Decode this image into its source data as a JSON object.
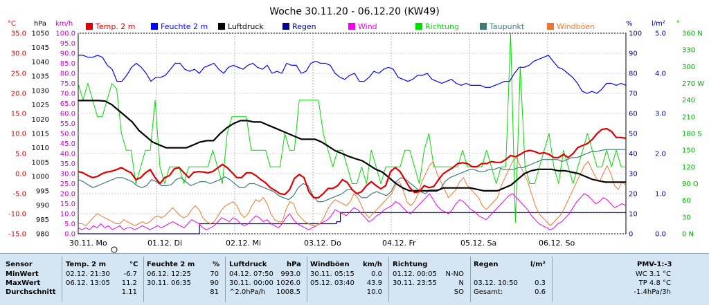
{
  "chart_data": {
    "type": "line",
    "title": "Woche 30.11.20 - 06.12.20 (KW49)",
    "axes": {
      "temp": {
        "unit": "°C",
        "min": -15,
        "max": 35,
        "ticks": [
          "35.0",
          "30.0",
          "25.0",
          "20.0",
          "15.0",
          "10.0",
          "5.0",
          "0.0",
          "-5.0",
          "-10.0",
          "-15.0"
        ],
        "color": "#dd0000"
      },
      "pressure": {
        "unit": "hPa",
        "min": 980,
        "max": 1050,
        "ticks": [
          "1050",
          "1045",
          "1040",
          "1035",
          "1030",
          "1025",
          "1020",
          "1015",
          "1010",
          "1005",
          "1000",
          "995",
          "990",
          "985",
          "980"
        ],
        "color": "#000000"
      },
      "wind": {
        "unit": "km/h",
        "min": 0,
        "max": 100,
        "ticks": [
          "100.0",
          "95.0",
          "90.0",
          "85.0",
          "80.0",
          "75.0",
          "70.0",
          "65.0",
          "60.0",
          "55.0",
          "50.0",
          "45.0",
          "40.0",
          "35.0",
          "30.0",
          "25.0",
          "20.0",
          "15.0",
          "10.0",
          "5.0",
          "0.0"
        ],
        "color": "#cc00cc"
      },
      "humidity": {
        "unit": "%",
        "min": 0,
        "max": 100,
        "ticks": [
          "100",
          "90",
          "80",
          "70",
          "60",
          "50",
          "40",
          "30",
          "20",
          "10",
          "0"
        ],
        "color": "#0000aa"
      },
      "rain": {
        "unit": "l/m²",
        "min": 0,
        "max": 5,
        "ticks": [
          "5.0",
          "4.0",
          "3.0",
          "2.0",
          "1.0",
          "0.0"
        ],
        "color": "#0000aa"
      },
      "direction": {
        "unit": "°",
        "min": 0,
        "max": 360,
        "ticks": [
          "360 N",
          "330",
          "300",
          "270 W",
          "240",
          "210",
          "180 S",
          "150",
          "120",
          "90 O",
          "60",
          "30",
          "0 N"
        ],
        "color": "#00aa00"
      }
    },
    "x_ticks": [
      "30.11. Mo",
      "01.12. Di",
      "02.12. Mi",
      "03.12. Do",
      "04.12. Fr",
      "05.12. Sa",
      "06.12. So"
    ],
    "legend": [
      {
        "name": "Temp. 2 m",
        "color": "#dd0000"
      },
      {
        "name": "Feuchte 2 m",
        "color": "#0000ff"
      },
      {
        "name": "Luftdruck",
        "color": "#000000"
      },
      {
        "name": "Regen",
        "color": "#000088"
      },
      {
        "name": "Wind",
        "color": "#ee00ee"
      },
      {
        "name": "Richtung",
        "color": "#00dd00"
      },
      {
        "name": "Taupunkt",
        "color": "#3d7a7a"
      },
      {
        "name": "Windböen",
        "color": "#ee7733"
      }
    ],
    "series": [
      {
        "name": "Temp. 2 m",
        "axis": "temp",
        "color": "#dd0000",
        "width": 2.2,
        "values": [
          0.5,
          0.2,
          -0.5,
          -1.0,
          -0.7,
          0,
          0.4,
          0.6,
          1.0,
          1.5,
          0.8,
          0.2,
          -1.5,
          -1.0,
          0.2,
          1.0,
          -1.0,
          -2.5,
          -1.0,
          -0.5,
          1.2,
          1.5,
          0.2,
          -1.0,
          0.3,
          0.5,
          0.4,
          0.2,
          0.5,
          1.4,
          2.3,
          1.5,
          0.3,
          -1.0,
          -1.0,
          0.2,
          0.2,
          -0.5,
          -1.5,
          -2.3,
          -3.5,
          -4.2,
          -5.0,
          -5.2,
          -4.0,
          -1.2,
          -0.2,
          -1.0,
          -4.5,
          -6.0,
          -6.0,
          -5.0,
          -3.7,
          -3.7,
          -3.0,
          -1.5,
          -2.2,
          -4.0,
          -5.0,
          -4.5,
          -3.0,
          -2.0,
          -3.0,
          -3.8,
          -3.0,
          0.5,
          1.5,
          0.5,
          -1.5,
          -3.5,
          -4.7,
          -4.5,
          -3.0,
          -3.5,
          -3.2,
          -1.5,
          0,
          0.8,
          1.5,
          2.5,
          2.7,
          2.5,
          1.7,
          1.7,
          2.5,
          2.5,
          3.0,
          2.8,
          2.8,
          3.5,
          4.5,
          4.2,
          4.8,
          5.5,
          5.8,
          5.5,
          5.0,
          5.2,
          4.8,
          4.0,
          4.0,
          4.8,
          4.0,
          5.0,
          6.5,
          7.0,
          7.5,
          8.5,
          10.0,
          11.0,
          11.2,
          10.5,
          9.0,
          9.0,
          8.8
        ]
      },
      {
        "name": "Feuchte 2 m",
        "axis": "humidity",
        "color": "#0000ff",
        "width": 1.2,
        "values": [
          89,
          89,
          88,
          88,
          89,
          88,
          84,
          82,
          76,
          76,
          79,
          83,
          85,
          83,
          80,
          76,
          78,
          78,
          79,
          82,
          85,
          85,
          82,
          81,
          82,
          80,
          83,
          84,
          85,
          82,
          80,
          83,
          84,
          83,
          82,
          84,
          85,
          83,
          82,
          84,
          80,
          81,
          80,
          85,
          84,
          84,
          80,
          81,
          85,
          86,
          85,
          85,
          84,
          80,
          78,
          77,
          79,
          80,
          76,
          76,
          78,
          81,
          80,
          82,
          83,
          82,
          78,
          77,
          76,
          77,
          79,
          79,
          80,
          77,
          76,
          75,
          76,
          77,
          75,
          74,
          75,
          74,
          74,
          74,
          73,
          73,
          74,
          75,
          76,
          76,
          80,
          83,
          83,
          84,
          86,
          87,
          88,
          89,
          86,
          83,
          82,
          80,
          78,
          75,
          71,
          70,
          71,
          70,
          72,
          75,
          75,
          74,
          75,
          74
        ]
      },
      {
        "name": "Luftdruck",
        "axis": "pressure",
        "color": "#000000",
        "width": 2.2,
        "values": [
          1026.5,
          1026.5,
          1026.5,
          1026.5,
          1026.3,
          1025,
          1023,
          1021,
          1019,
          1016,
          1014,
          1012,
          1011,
          1010,
          1010,
          1010,
          1010,
          1011,
          1012,
          1012.5,
          1012.5,
          1015,
          1017,
          1018.5,
          1019.5,
          1019.5,
          1019,
          1019,
          1018,
          1017,
          1016,
          1015,
          1014,
          1013,
          1013,
          1013,
          1012,
          1010.5,
          1009,
          1008,
          1007,
          1006.2,
          1005.5,
          1004,
          1002.5,
          1001.5,
          999.5,
          997.5,
          996,
          995,
          995,
          995,
          995,
          995,
          996,
          996,
          996,
          996,
          996,
          995.5,
          995,
          995,
          995,
          996,
          997,
          999,
          1001,
          1002,
          1002.5,
          1002.5,
          1002.5,
          1002,
          1002,
          1001.5,
          1001,
          1000,
          999,
          998.5,
          998,
          998,
          998,
          998
        ]
      },
      {
        "name": "Taupunkt",
        "axis": "temp",
        "color": "#3d7a7a",
        "width": 1.2,
        "values": [
          -1.5,
          -2.0,
          -2.8,
          -3.5,
          -3.0,
          -2.5,
          -2.0,
          -1.5,
          -1.0,
          -1.0,
          -1.5,
          -2.0,
          -3.0,
          -3.5,
          -3.0,
          -1.5,
          -2.0,
          -3.0,
          -3.0,
          -2.8,
          -1.5,
          -1.0,
          -2.0,
          -3.0,
          -2.5,
          -2.0,
          -2.0,
          -2.5,
          -2.0,
          -1.5,
          -0.8,
          -1.5,
          -2.5,
          -3.5,
          -3.5,
          -2.5,
          -2.5,
          -3.0,
          -3.5,
          -4.0,
          -4.5,
          -5.5,
          -6.0,
          -6.5,
          -5.5,
          -3.5,
          -2.5,
          -3.0,
          -5.5,
          -7.0,
          -7.0,
          -6.5,
          -6.0,
          -5.5,
          -5.0,
          -4.0,
          -4.0,
          -5.0,
          -6.0,
          -6.0,
          -5.0,
          -4.5,
          -5.0,
          -5.5,
          -4.5,
          -2.0,
          -1.0,
          -1.5,
          -2.5,
          -3.5,
          -4.5,
          -5.0,
          -4.0,
          -4.0,
          -4.0,
          -2.0,
          -1.0,
          -0.5,
          0,
          0.5,
          1.0,
          1.0,
          0.5,
          0.5,
          1.0,
          1.0,
          1.5,
          1.0,
          1.0,
          1.0,
          1.5,
          1.5,
          2.0,
          2.5,
          3.0,
          3.5,
          3.5,
          3.5,
          3.5,
          3.0,
          3.5,
          4.0,
          4.0,
          4.5,
          5.0,
          5.5,
          5.5,
          5.8,
          6.0,
          6.0,
          6.0,
          6.0,
          6.0
        ]
      },
      {
        "name": "Windböen",
        "axis": "wind",
        "color": "#ee7733",
        "width": 1,
        "values": [
          5,
          5,
          4,
          6,
          8,
          10,
          9,
          8,
          7,
          6,
          5,
          5,
          7,
          6,
          5,
          4,
          5,
          6,
          5,
          6,
          8,
          9,
          8,
          9,
          11,
          13,
          11,
          9,
          8,
          9,
          12,
          14,
          12,
          8,
          6,
          5,
          6,
          9,
          12,
          14,
          15,
          16,
          14,
          10,
          8,
          10,
          14,
          17,
          16,
          18,
          15,
          10,
          7,
          6,
          6,
          12,
          16,
          15,
          10,
          8,
          6,
          5,
          4,
          4,
          5,
          8,
          12,
          15,
          17,
          16,
          15,
          14,
          16,
          20,
          18,
          14,
          10,
          8,
          10,
          12,
          14,
          16,
          18,
          20,
          24,
          26,
          22,
          16,
          14,
          16,
          20,
          26,
          30,
          34,
          36,
          30,
          26,
          22,
          18,
          20,
          22,
          26,
          28,
          24,
          22,
          20,
          18,
          14,
          12,
          14,
          16,
          18,
          24,
          28,
          32,
          36,
          38,
          34,
          30,
          26,
          20,
          14,
          10,
          8,
          6,
          4,
          6,
          8,
          10,
          14,
          18,
          22,
          26,
          30,
          34,
          36,
          32,
          28,
          26,
          30,
          34,
          30,
          24,
          22,
          26,
          24
        ]
      },
      {
        "name": "Wind",
        "axis": "wind",
        "color": "#ee00ee",
        "width": 1,
        "values": [
          3,
          2,
          3,
          2,
          4,
          3,
          5,
          3,
          4,
          2,
          3,
          4,
          2,
          3,
          3,
          2,
          3,
          4,
          3,
          2,
          3,
          4,
          3,
          4,
          5,
          6,
          5,
          4,
          3,
          5,
          7,
          6,
          5,
          3,
          2,
          3,
          4,
          6,
          8,
          7,
          6,
          8,
          7,
          5,
          4,
          5,
          7,
          9,
          8,
          6,
          7,
          5,
          4,
          3,
          5,
          8,
          10,
          7,
          5,
          4,
          3,
          2,
          3,
          4,
          5,
          6,
          7,
          9,
          12,
          11,
          10,
          9,
          11,
          13,
          12,
          10,
          8,
          6,
          7,
          9,
          10,
          12,
          13,
          14,
          16,
          15,
          13,
          11,
          10,
          12,
          14,
          16,
          18,
          20,
          17,
          14,
          12,
          11,
          10,
          12,
          15,
          17,
          16,
          14,
          12,
          11,
          9,
          8,
          7,
          9,
          11,
          13,
          15,
          17,
          19,
          20,
          18,
          16,
          14,
          12,
          9,
          7,
          5,
          4,
          3,
          2,
          3,
          5,
          6,
          8,
          10,
          13,
          16,
          18,
          20,
          19,
          17,
          15,
          16,
          18,
          17,
          15,
          13,
          14,
          15,
          14
        ]
      },
      {
        "name": "Richtung",
        "axis": "direction",
        "color": "#00dd00",
        "width": 1,
        "values": [
          270,
          240,
          270,
          240,
          210,
          210,
          240,
          270,
          260,
          180,
          150,
          150,
          90,
          120,
          150,
          150,
          240,
          120,
          90,
          120,
          120,
          120,
          90,
          120,
          120,
          120,
          120,
          120,
          150,
          120,
          90,
          180,
          210,
          210,
          210,
          210,
          150,
          150,
          150,
          150,
          120,
          120,
          120,
          180,
          150,
          150,
          240,
          240,
          240,
          240,
          240,
          180,
          150,
          120,
          150,
          150,
          120,
          90,
          90,
          120,
          90,
          150,
          120,
          90,
          120,
          120,
          120,
          120,
          150,
          150,
          120,
          90,
          150,
          180,
          120,
          120,
          120,
          120,
          120,
          120,
          150,
          120,
          120,
          120,
          120,
          150,
          120,
          90,
          120,
          120,
          360,
          20,
          300,
          120,
          90,
          90,
          120,
          150,
          180,
          120,
          90,
          150,
          120,
          90,
          120,
          150,
          180,
          150,
          120,
          120,
          150,
          120,
          150,
          120,
          120
        ]
      },
      {
        "name": "Regen",
        "axis": "rain",
        "color": "#000088",
        "width": 1.2,
        "step": true,
        "points": [
          [
            0,
            0
          ],
          [
            1.55,
            0
          ],
          [
            1.55,
            0.25
          ],
          [
            3.3,
            0.25
          ],
          [
            3.3,
            0.3
          ],
          [
            3.35,
            0.3
          ],
          [
            3.35,
            0.53
          ],
          [
            7.0,
            0.53
          ]
        ]
      }
    ]
  },
  "stats": {
    "headers": {
      "sensor": "Sensor",
      "temp": "Temp. 2 m",
      "temp_unit": "°C",
      "hum": "Feuchte 2 m",
      "hum_unit": "%",
      "press": "Luftdruck",
      "press_unit": "hPa",
      "gust": "Windböen",
      "gust_unit": "km/h",
      "dir": "Richtung",
      "rain": "Regen",
      "rain_unit": "l/m²",
      "pmv": "PMV-1:-3"
    },
    "rows": [
      {
        "label": "MinWert",
        "temp_time": "02.12. 21:30",
        "temp_val": "-6.7",
        "hum_time": "06.12. 12:25",
        "hum_val": "70",
        "press_time": "04.12. 07:50",
        "press_val": "993.0",
        "gust_time": "30.11. 05:15",
        "gust_val": "0.0",
        "dir_time": "01.12. 00:05",
        "dir_val": "N-NO",
        "rain_time": "",
        "rain_val": "",
        "pmv": "WC 3.1 °C"
      },
      {
        "label": "MaxWert",
        "temp_time": "06.12. 13:05",
        "temp_val": "11.2",
        "hum_time": "30.11. 06:35",
        "hum_val": "90",
        "press_time": "30.11. 00:00",
        "press_val": "1026.0",
        "gust_time": "05.12. 03:40",
        "gust_val": "43.9",
        "dir_time": "30.11. 23:55",
        "dir_val": "N",
        "rain_time": "03.12. 10:50",
        "rain_val": "0.3",
        "pmv": "TP 4.8 °C"
      },
      {
        "label": "Durchschnitt",
        "temp_time": "",
        "temp_val": "1.11",
        "hum_time": "",
        "hum_val": "81",
        "press_time": "^2.0hPa/h",
        "press_val": "1008.5",
        "gust_time": "",
        "gust_val": "10.0",
        "dir_time": "",
        "dir_val": "SO",
        "rain_time": "Gesamt:",
        "rain_val": "0.6",
        "pmv": "-1.4hPa/3h"
      }
    ]
  }
}
